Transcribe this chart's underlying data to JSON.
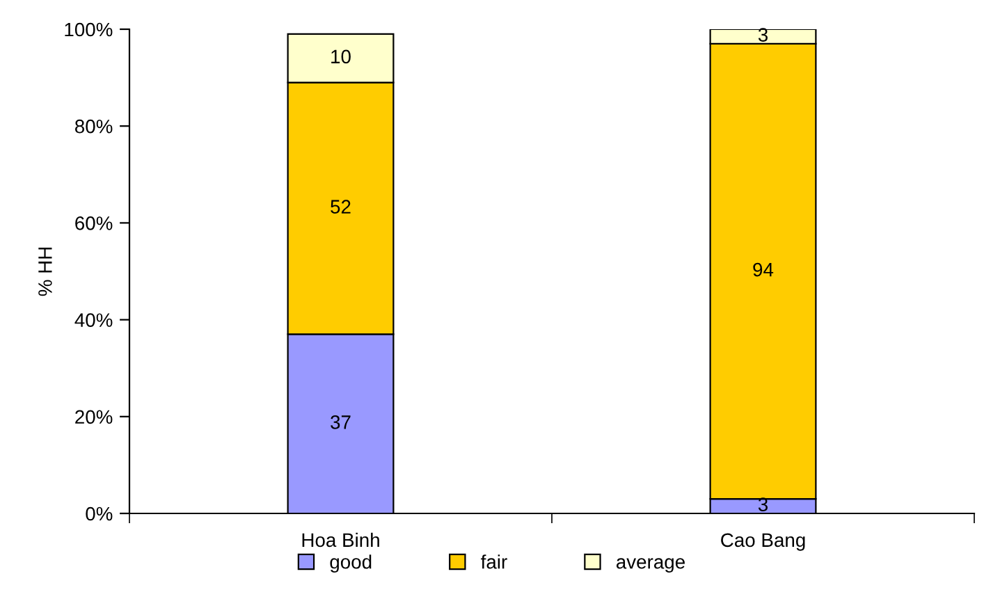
{
  "chart_data": {
    "type": "bar",
    "stacked": true,
    "ylabel": "% HH",
    "categories": [
      "Hoa Binh",
      "Cao Bang"
    ],
    "series": [
      {
        "name": "good",
        "color": "#9999ff",
        "values": [
          37,
          3
        ]
      },
      {
        "name": "fair",
        "color": "#ffcc00",
        "values": [
          52,
          94
        ]
      },
      {
        "name": "average",
        "color": "#ffffcc",
        "values": [
          10,
          3
        ]
      }
    ],
    "ylim": [
      0,
      100
    ],
    "yticks": [
      {
        "value": 0,
        "label": "0%"
      },
      {
        "value": 20,
        "label": "20%"
      },
      {
        "value": 40,
        "label": "40%"
      },
      {
        "value": 60,
        "label": "60%"
      },
      {
        "value": 80,
        "label": "80%"
      },
      {
        "value": 100,
        "label": "100%"
      }
    ],
    "data_labels": true,
    "grid": false,
    "legend": "bottom"
  }
}
